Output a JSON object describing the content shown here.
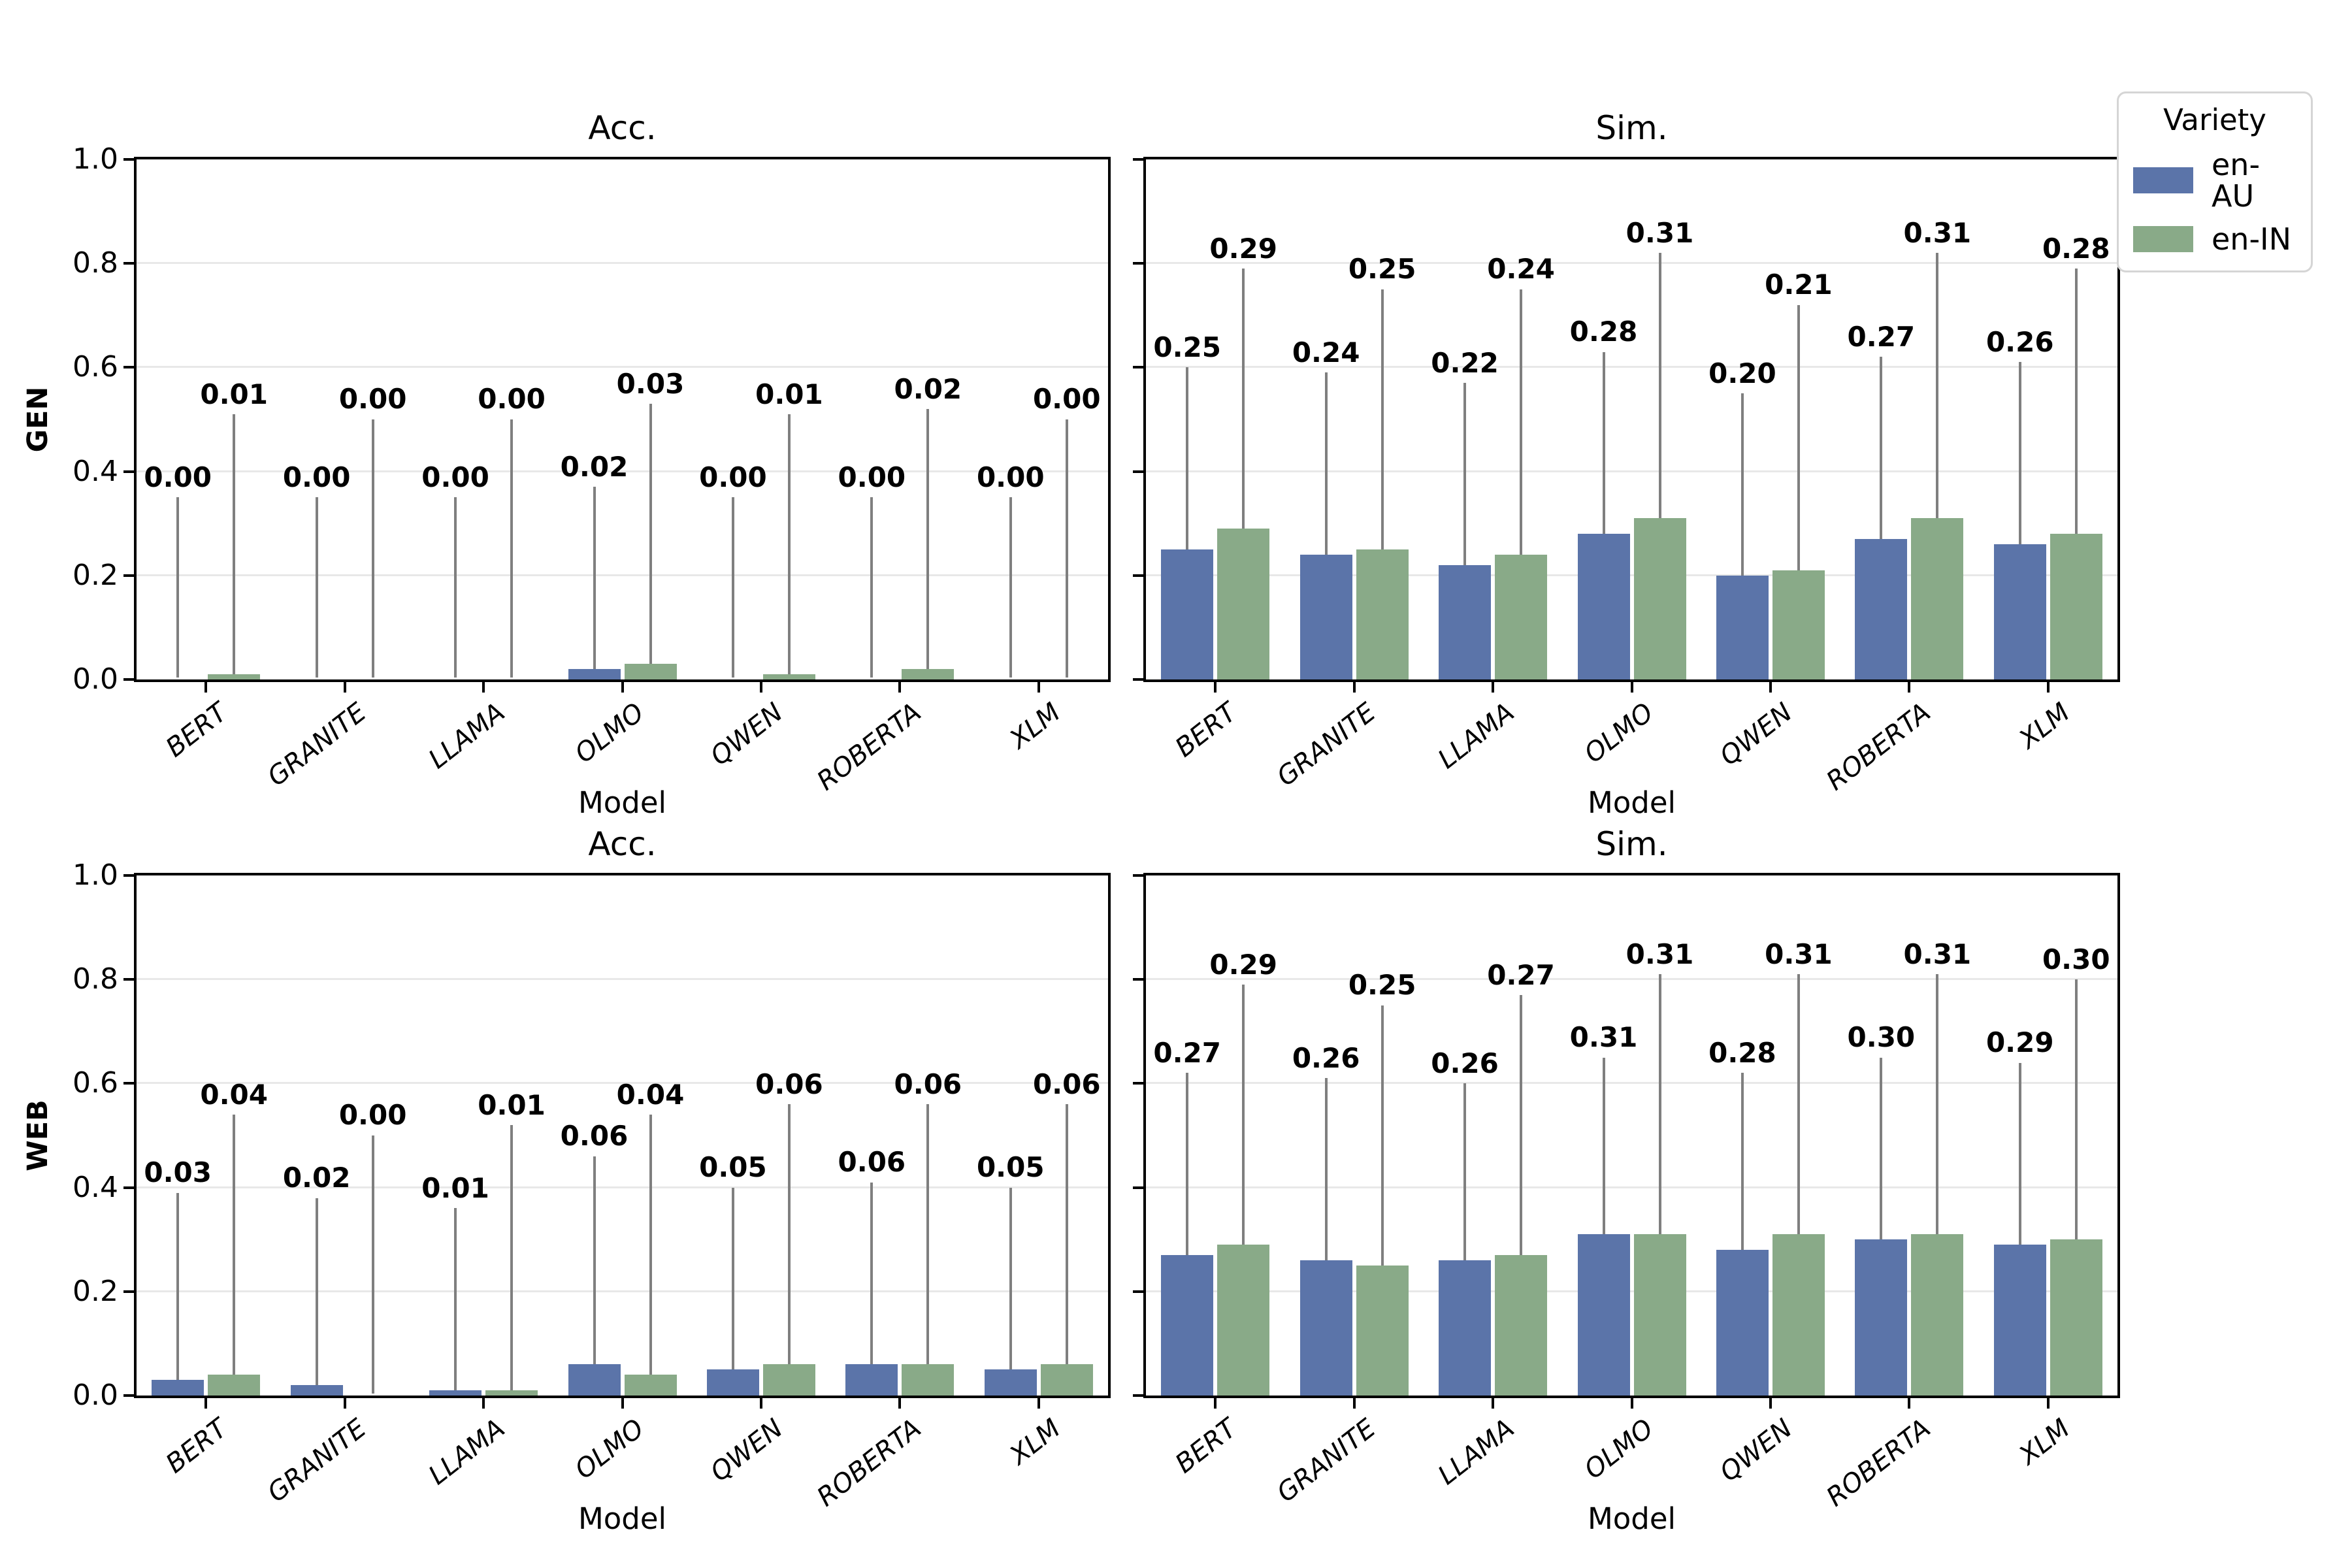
{
  "figure": {
    "background": "#ffffff",
    "rows": [
      "GEN",
      "WEB"
    ]
  },
  "axes": {
    "y_ticks": [
      "1.0",
      "0.8",
      "0.6",
      "0.4",
      "0.2",
      "0.0"
    ],
    "ylim": [
      0,
      1
    ],
    "xlabel": "Model",
    "grid": "horizontal"
  },
  "legend": {
    "title": "Variety",
    "position": "upper-right-outside",
    "items": [
      {
        "label": "en-AU",
        "color": "#5b74a9"
      },
      {
        "label": "en-IN",
        "color": "#89aa88"
      }
    ]
  },
  "colors": {
    "en_AU": "#5b74a9",
    "en_IN": "#89aa88",
    "error_bar": "#7f7f7f",
    "grid": "#e8e8e8",
    "axis": "#000000"
  },
  "chart_data": [
    {
      "type": "bar",
      "row": "GEN",
      "title": "Acc.",
      "xlabel": "Model",
      "ylim": [
        0,
        1
      ],
      "categories": [
        "BERT",
        "GRANITE",
        "LLAMA",
        "OLMO",
        "QWEN",
        "ROBERTA",
        "XLM"
      ],
      "series": [
        {
          "name": "en-AU",
          "values": [
            0.0,
            0.0,
            0.0,
            0.02,
            0.0,
            0.0,
            0.0
          ],
          "err_upper": [
            0.35,
            0.35,
            0.35,
            0.37,
            0.35,
            0.35,
            0.35
          ]
        },
        {
          "name": "en-IN",
          "values": [
            0.01,
            0.0,
            0.0,
            0.03,
            0.01,
            0.02,
            0.0
          ],
          "err_upper": [
            0.51,
            0.5,
            0.5,
            0.53,
            0.51,
            0.52,
            0.5
          ]
        }
      ]
    },
    {
      "type": "bar",
      "row": "GEN",
      "title": "Sim.",
      "xlabel": "Model",
      "ylim": [
        0,
        1
      ],
      "categories": [
        "BERT",
        "GRANITE",
        "LLAMA",
        "OLMO",
        "QWEN",
        "ROBERTA",
        "XLM"
      ],
      "series": [
        {
          "name": "en-AU",
          "values": [
            0.25,
            0.24,
            0.22,
            0.28,
            0.2,
            0.27,
            0.26
          ],
          "err_upper": [
            0.6,
            0.59,
            0.57,
            0.63,
            0.55,
            0.62,
            0.61
          ]
        },
        {
          "name": "en-IN",
          "values": [
            0.29,
            0.25,
            0.24,
            0.31,
            0.21,
            0.31,
            0.28
          ],
          "err_upper": [
            0.79,
            0.75,
            0.75,
            0.82,
            0.72,
            0.82,
            0.79
          ]
        }
      ]
    },
    {
      "type": "bar",
      "row": "WEB",
      "title": "Acc.",
      "xlabel": "Model",
      "ylim": [
        0,
        1
      ],
      "categories": [
        "BERT",
        "GRANITE",
        "LLAMA",
        "OLMO",
        "QWEN",
        "ROBERTA",
        "XLM"
      ],
      "series": [
        {
          "name": "en-AU",
          "values": [
            0.03,
            0.02,
            0.01,
            0.06,
            0.05,
            0.06,
            0.05
          ],
          "err_upper": [
            0.39,
            0.38,
            0.36,
            0.46,
            0.4,
            0.41,
            0.4
          ]
        },
        {
          "name": "en-IN",
          "values": [
            0.04,
            0.0,
            0.01,
            0.04,
            0.06,
            0.06,
            0.06
          ],
          "err_upper": [
            0.54,
            0.5,
            0.52,
            0.54,
            0.56,
            0.56,
            0.56
          ]
        }
      ]
    },
    {
      "type": "bar",
      "row": "WEB",
      "title": "Sim.",
      "xlabel": "Model",
      "ylim": [
        0,
        1
      ],
      "categories": [
        "BERT",
        "GRANITE",
        "LLAMA",
        "OLMO",
        "QWEN",
        "ROBERTA",
        "XLM"
      ],
      "series": [
        {
          "name": "en-AU",
          "values": [
            0.27,
            0.26,
            0.26,
            0.31,
            0.28,
            0.3,
            0.29
          ],
          "err_upper": [
            0.62,
            0.61,
            0.6,
            0.65,
            0.62,
            0.65,
            0.64
          ]
        },
        {
          "name": "en-IN",
          "values": [
            0.29,
            0.25,
            0.27,
            0.31,
            0.31,
            0.31,
            0.3
          ],
          "err_upper": [
            0.79,
            0.75,
            0.77,
            0.81,
            0.81,
            0.81,
            0.8
          ]
        }
      ]
    }
  ]
}
